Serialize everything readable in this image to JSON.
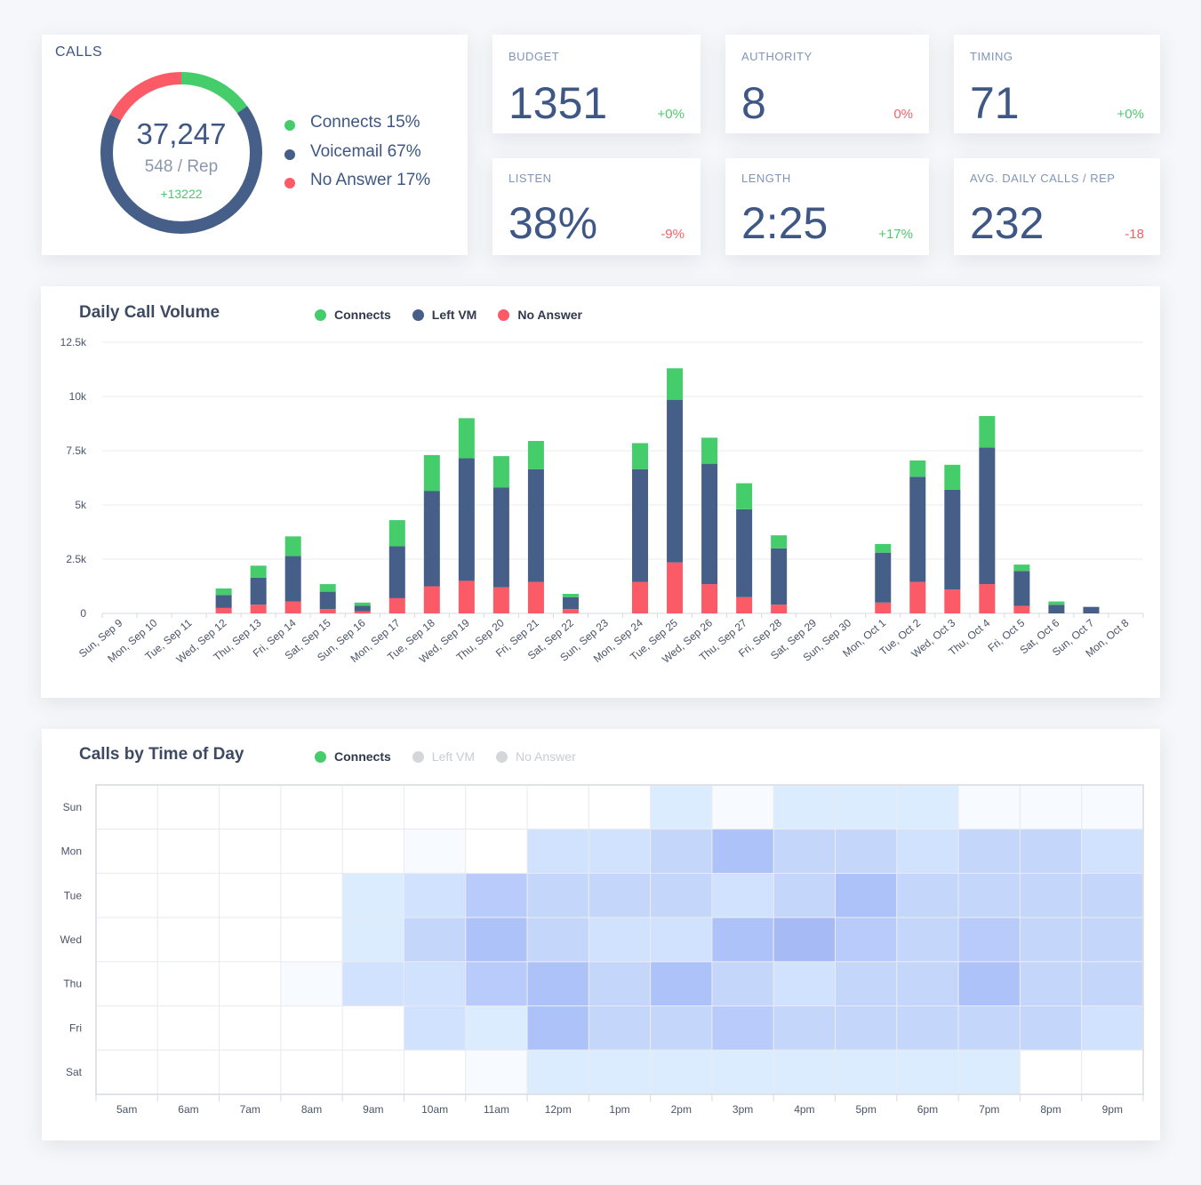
{
  "calls": {
    "title": "CALLS",
    "total": "37,247",
    "per_rep": "548 / Rep",
    "delta": "+13222",
    "segments": [
      {
        "name": "Connects",
        "percent": 15,
        "color": "#45cd6c"
      },
      {
        "name": "Voicemail",
        "percent": 67,
        "color": "#455f88"
      },
      {
        "name": "No Answer",
        "percent": 17,
        "color": "#fb5a67"
      }
    ],
    "legend": [
      {
        "label": "Connects 15%",
        "color": "#45cd6c"
      },
      {
        "label": "Voicemail 67%",
        "color": "#455f88"
      },
      {
        "label": "No Answer 17%",
        "color": "#fb5a67"
      }
    ]
  },
  "stats": [
    {
      "label": "BUDGET",
      "value": "1351",
      "delta": "+0%",
      "trend": "pos"
    },
    {
      "label": "AUTHORITY",
      "value": "8",
      "delta": "0%",
      "trend": "neg"
    },
    {
      "label": "TIMING",
      "value": "71",
      "delta": "+0%",
      "trend": "pos"
    },
    {
      "label": "LISTEN",
      "value": "38%",
      "delta": "-9%",
      "trend": "neg"
    },
    {
      "label": "LENGTH",
      "value": "2:25",
      "delta": "+17%",
      "trend": "pos"
    },
    {
      "label": "AVG. DAILY CALLS / REP",
      "value": "232",
      "delta": "-18",
      "trend": "neg"
    }
  ],
  "volume": {
    "title": "Daily Call Volume",
    "legend": [
      {
        "label": "Connects",
        "color": "#45cd6c"
      },
      {
        "label": "Left VM",
        "color": "#455f88"
      },
      {
        "label": "No Answer",
        "color": "#fb5a67"
      }
    ]
  },
  "heatmap": {
    "title": "Calls by Time of Day",
    "legend": [
      {
        "label": "Connects",
        "color": "#45cd6c",
        "active": true
      },
      {
        "label": "Left VM",
        "color": "#d4d6da",
        "active": false
      },
      {
        "label": "No Answer",
        "color": "#d4d6da",
        "active": false
      }
    ]
  },
  "chart_data": [
    {
      "type": "bar",
      "stacked": true,
      "title": "Daily Call Volume",
      "ylim": [
        0,
        12500
      ],
      "yticks": [
        0,
        2500,
        5000,
        7500,
        10000,
        12500
      ],
      "ytick_labels": [
        "0",
        "2.5k",
        "5k",
        "7.5k",
        "10k",
        "12.5k"
      ],
      "grid": true,
      "legend_position": "top",
      "categories": [
        "Sun, Sep 9",
        "Mon, Sep 10",
        "Tue, Sep 11",
        "Wed, Sep 12",
        "Thu, Sep 13",
        "Fri, Sep 14",
        "Sat, Sep 15",
        "Sun, Sep 16",
        "Mon, Sep 17",
        "Tue, Sep 18",
        "Wed, Sep 19",
        "Thu, Sep 20",
        "Fri, Sep 21",
        "Sat, Sep 22",
        "Sun, Sep 23",
        "Mon, Sep 24",
        "Tue, Sep 25",
        "Wed, Sep 26",
        "Thu, Sep 27",
        "Fri, Sep 28",
        "Sat, Sep 29",
        "Sun, Sep 30",
        "Mon, Oct 1",
        "Tue, Oct 2",
        "Wed, Oct 3",
        "Thu, Oct 4",
        "Fri, Oct 5",
        "Sat, Oct 6",
        "Sun, Oct 7",
        "Mon, Oct 8"
      ],
      "series": [
        {
          "name": "No Answer",
          "color": "#fb5a67",
          "values": [
            0,
            0,
            0,
            250,
            400,
            550,
            200,
            100,
            700,
            1250,
            1500,
            1200,
            1450,
            200,
            0,
            1450,
            2350,
            1350,
            750,
            400,
            0,
            0,
            500,
            1450,
            1100,
            1350,
            350,
            0,
            0,
            0
          ]
        },
        {
          "name": "Left VM",
          "color": "#455f88",
          "values": [
            0,
            0,
            0,
            600,
            1250,
            2100,
            800,
            250,
            2400,
            4400,
            5650,
            4600,
            5200,
            550,
            0,
            5200,
            7500,
            5550,
            4050,
            2600,
            0,
            0,
            2300,
            4850,
            4600,
            6300,
            1600,
            400,
            300,
            0
          ]
        },
        {
          "name": "Connects",
          "color": "#45cd6c",
          "values": [
            0,
            0,
            0,
            300,
            550,
            900,
            350,
            150,
            1200,
            1650,
            1850,
            1450,
            1300,
            150,
            0,
            1200,
            1450,
            1200,
            1200,
            600,
            0,
            0,
            400,
            750,
            1150,
            1450,
            300,
            150,
            0,
            0
          ]
        }
      ]
    },
    {
      "type": "heatmap",
      "title": "Calls by Time of Day",
      "series_name": "Connects",
      "x": [
        "5am",
        "6am",
        "7am",
        "8am",
        "9am",
        "10am",
        "11am",
        "12pm",
        "1pm",
        "2pm",
        "3pm",
        "4pm",
        "5pm",
        "6pm",
        "7pm",
        "8pm",
        "9pm"
      ],
      "y": [
        "Sun",
        "Mon",
        "Tue",
        "Wed",
        "Thu",
        "Fri",
        "Sat"
      ],
      "z": [
        [
          0,
          0,
          0,
          0,
          0,
          0,
          0,
          0,
          0,
          2,
          1,
          2,
          2,
          2,
          1,
          1,
          1
        ],
        [
          0,
          0,
          0,
          0,
          0,
          1,
          0,
          3,
          3,
          4,
          6,
          4,
          4,
          3,
          4,
          4,
          3
        ],
        [
          0,
          0,
          0,
          0,
          2,
          3,
          5,
          4,
          4,
          4,
          3,
          4,
          6,
          4,
          4,
          4,
          4
        ],
        [
          0,
          0,
          0,
          0,
          2,
          4,
          6,
          4,
          3,
          3,
          6,
          7,
          5,
          4,
          5,
          4,
          4
        ],
        [
          0,
          0,
          0,
          1,
          3,
          3,
          5,
          6,
          4,
          6,
          4,
          3,
          4,
          4,
          6,
          4,
          4
        ],
        [
          0,
          0,
          0,
          0,
          0,
          3,
          2,
          6,
          4,
          4,
          5,
          4,
          4,
          4,
          4,
          4,
          3
        ],
        [
          0,
          0,
          0,
          0,
          0,
          0,
          1,
          2,
          2,
          2,
          2,
          2,
          2,
          2,
          2,
          0,
          0
        ]
      ]
    }
  ]
}
